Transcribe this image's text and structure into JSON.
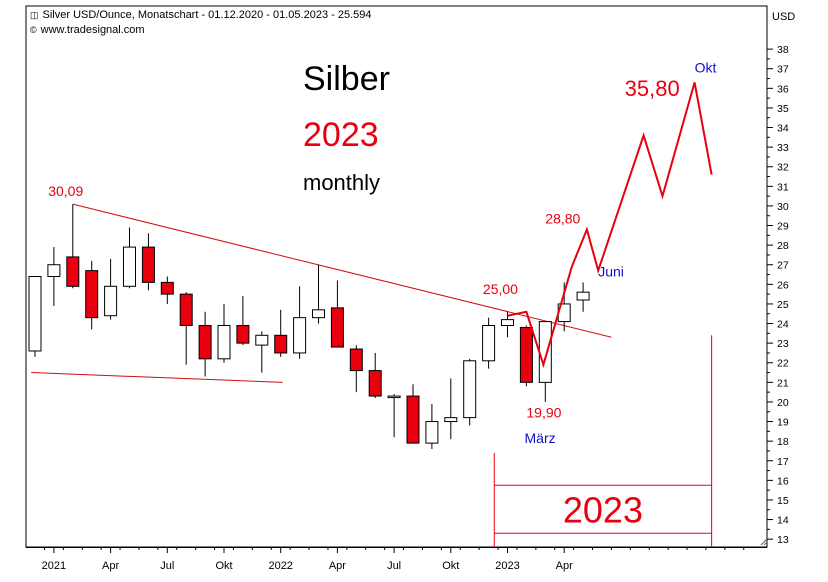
{
  "header": {
    "title": "Silver USD/Ounce, Monatschart - 01.12.2020 - 01.05.2023 - 25.594",
    "source": "www.tradesignal.com",
    "currency": "USD",
    "title_icon": "chart-icon",
    "source_icon": "copyright-icon"
  },
  "colors": {
    "bear": "#e8000f",
    "bull": "#ffffff",
    "wick": "#000000",
    "trend": "#d01010",
    "forecast": "#e8000f",
    "text_red": "#e8000f",
    "text_blue": "#1010c8",
    "axis": "#000000"
  },
  "chart_data": {
    "type": "candlestick",
    "title": "Silber",
    "subtitle_year": "2023",
    "subtitle_period": "monthly",
    "ylabel": "USD",
    "ylim": [
      12.6,
      40.2
    ],
    "yticks": [
      13,
      14,
      15,
      16,
      17,
      18,
      19,
      20,
      21,
      22,
      23,
      24,
      25,
      26,
      27,
      28,
      29,
      30,
      31,
      32,
      33,
      34,
      35,
      36,
      37,
      38
    ],
    "xticks": [
      {
        "index": 1,
        "label": "2021"
      },
      {
        "index": 4,
        "label": "Apr"
      },
      {
        "index": 7,
        "label": "Jul"
      },
      {
        "index": 10,
        "label": "Okt"
      },
      {
        "index": 13,
        "label": "2022"
      },
      {
        "index": 16,
        "label": "Apr"
      },
      {
        "index": 19,
        "label": "Jul"
      },
      {
        "index": 22,
        "label": "Okt"
      },
      {
        "index": 25,
        "label": "2023"
      },
      {
        "index": 28,
        "label": "Apr"
      }
    ],
    "candles": [
      {
        "month": "2020-12",
        "open": 22.6,
        "high": 26.4,
        "low": 22.3,
        "close": 26.4
      },
      {
        "month": "2021-01",
        "open": 26.4,
        "high": 27.9,
        "low": 24.9,
        "close": 27.0
      },
      {
        "month": "2021-02",
        "open": 27.4,
        "high": 30.09,
        "low": 25.8,
        "close": 25.9
      },
      {
        "month": "2021-03",
        "open": 26.7,
        "high": 27.2,
        "low": 23.7,
        "close": 24.3
      },
      {
        "month": "2021-04",
        "open": 24.4,
        "high": 27.3,
        "low": 24.2,
        "close": 25.9
      },
      {
        "month": "2021-05",
        "open": 25.9,
        "high": 28.9,
        "low": 25.8,
        "close": 27.9
      },
      {
        "month": "2021-06",
        "open": 27.9,
        "high": 28.6,
        "low": 25.7,
        "close": 26.1
      },
      {
        "month": "2021-07",
        "open": 26.1,
        "high": 26.4,
        "low": 25.0,
        "close": 25.5
      },
      {
        "month": "2021-08",
        "open": 25.5,
        "high": 25.6,
        "low": 21.9,
        "close": 23.9
      },
      {
        "month": "2021-09",
        "open": 23.9,
        "high": 24.6,
        "low": 21.3,
        "close": 22.2
      },
      {
        "month": "2021-10",
        "open": 22.2,
        "high": 25.0,
        "low": 22.0,
        "close": 23.9
      },
      {
        "month": "2021-11",
        "open": 23.9,
        "high": 25.4,
        "low": 22.9,
        "close": 23.0
      },
      {
        "month": "2021-12",
        "open": 22.9,
        "high": 23.6,
        "low": 21.5,
        "close": 23.4
      },
      {
        "month": "2022-01",
        "open": 23.4,
        "high": 24.7,
        "low": 22.3,
        "close": 22.5
      },
      {
        "month": "2022-02",
        "open": 22.5,
        "high": 25.9,
        "low": 22.2,
        "close": 24.3
      },
      {
        "month": "2022-03",
        "open": 24.3,
        "high": 27.0,
        "low": 24.0,
        "close": 24.7
      },
      {
        "month": "2022-04",
        "open": 24.8,
        "high": 26.2,
        "low": 22.8,
        "close": 22.8
      },
      {
        "month": "2022-05",
        "open": 22.7,
        "high": 22.9,
        "low": 20.5,
        "close": 21.6
      },
      {
        "month": "2022-06",
        "open": 21.6,
        "high": 22.5,
        "low": 20.2,
        "close": 20.3
      },
      {
        "month": "2022-07",
        "open": 20.3,
        "high": 20.4,
        "low": 18.2,
        "close": 20.3
      },
      {
        "month": "2022-08",
        "open": 20.3,
        "high": 20.9,
        "low": 17.9,
        "close": 17.9
      },
      {
        "month": "2022-09",
        "open": 17.9,
        "high": 19.9,
        "low": 17.6,
        "close": 19.0
      },
      {
        "month": "2022-10",
        "open": 19.0,
        "high": 21.2,
        "low": 18.1,
        "close": 19.2
      },
      {
        "month": "2022-11",
        "open": 19.2,
        "high": 22.2,
        "low": 18.8,
        "close": 22.1
      },
      {
        "month": "2022-12",
        "open": 22.1,
        "high": 24.3,
        "low": 21.7,
        "close": 23.9
      },
      {
        "month": "2023-01",
        "open": 23.9,
        "high": 24.6,
        "low": 23.3,
        "close": 24.2
      },
      {
        "month": "2023-02",
        "open": 23.8,
        "high": 23.9,
        "low": 20.8,
        "close": 21.0
      },
      {
        "month": "2023-03",
        "open": 21.0,
        "high": 24.1,
        "low": 20.0,
        "close": 24.1
      },
      {
        "month": "2023-04",
        "open": 24.1,
        "high": 26.1,
        "low": 23.6,
        "close": 25.0
      },
      {
        "month": "2023-05",
        "open": 25.2,
        "high": 26.1,
        "low": 24.6,
        "close": 25.6
      }
    ],
    "trendlines": [
      {
        "name": "resistance-line",
        "from": [
          2,
          30.09
        ],
        "to": [
          30.5,
          23.3
        ]
      },
      {
        "name": "support-line",
        "from": [
          -0.2,
          21.5
        ],
        "to": [
          13.1,
          21.0
        ]
      }
    ],
    "forecast_path": [
      [
        25.0,
        24.4
      ],
      [
        26.0,
        24.6
      ],
      [
        26.9,
        21.9
      ],
      [
        28.4,
        26.9
      ],
      [
        29.2,
        28.8
      ],
      [
        29.8,
        26.7
      ],
      [
        32.2,
        33.6
      ],
      [
        33.2,
        30.5
      ],
      [
        34.9,
        36.3
      ],
      [
        35.8,
        31.6
      ]
    ],
    "annotations": [
      {
        "name": "label-30-09",
        "text": "30,09",
        "color": "red",
        "x": 0.7,
        "y": 30.5
      },
      {
        "name": "label-25-00",
        "text": "25,00",
        "color": "red",
        "x": 23.7,
        "y": 25.5
      },
      {
        "name": "label-28-80",
        "text": "28,80",
        "color": "red",
        "x": 27.0,
        "y": 29.1
      },
      {
        "name": "label-juni",
        "text": "Juni",
        "color": "blue",
        "x": 29.8,
        "y": 26.4
      },
      {
        "name": "label-19-90",
        "text": "19,90",
        "color": "red",
        "x": 26.0,
        "y": 19.2
      },
      {
        "name": "label-maerz",
        "text": "März",
        "color": "blue",
        "x": 25.9,
        "y": 17.9
      },
      {
        "name": "label-35-80",
        "text": "35,80",
        "color": "red",
        "x": 31.2,
        "y": 35.6
      },
      {
        "name": "label-okt",
        "text": "Okt",
        "color": "blue",
        "x": 34.9,
        "y": 36.8
      }
    ],
    "year_box": {
      "label": "2023",
      "x_from": 24.3,
      "x_to": 35.8,
      "y_top": 15.75,
      "y_bottom": 13.3
    },
    "year_box_extent": {
      "y_top_right": 23.4,
      "y_top_left": 17.4,
      "y_bottom": 12.6
    }
  }
}
